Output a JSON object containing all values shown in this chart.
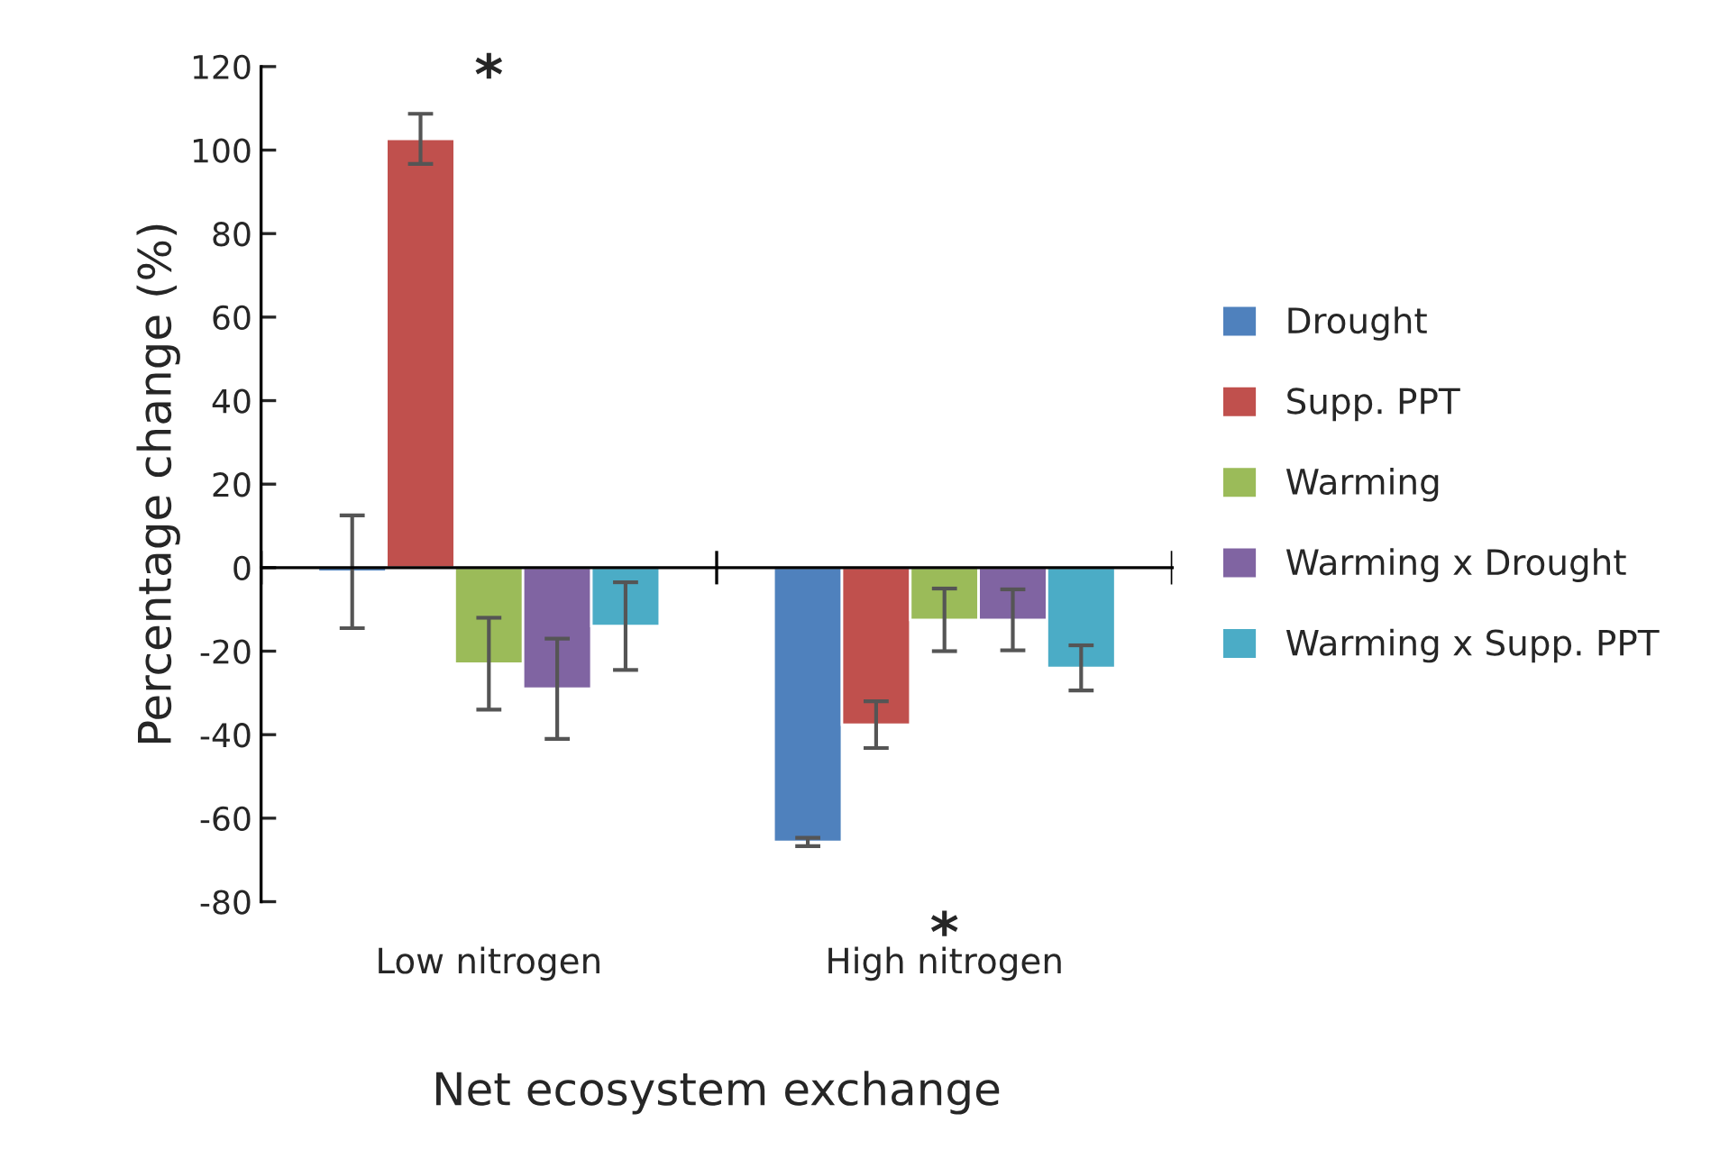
{
  "chart_data": {
    "type": "bar",
    "xlabel": "Net ecosystem exchange",
    "ylabel": "Percentage change (%)",
    "categories": [
      "Low nitrogen",
      "High nitrogen"
    ],
    "series": [
      {
        "name": "Drought",
        "color": "#4f81bd",
        "values": [
          -1,
          -65.7
        ],
        "errors": [
          13.5,
          1
        ]
      },
      {
        "name": "Supp. PPT",
        "color": "#c0504d",
        "values": [
          102.7,
          -37.6
        ],
        "errors": [
          6,
          5.6
        ]
      },
      {
        "name": "Warming",
        "color": "#9bbb59",
        "values": [
          -23,
          -12.5
        ],
        "errors": [
          11,
          7.5
        ]
      },
      {
        "name": "Warming x Drought",
        "color": "#8064a2",
        "values": [
          -29,
          -12.5
        ],
        "errors": [
          12,
          7.3
        ]
      },
      {
        "name": "Warming x Supp. PPT",
        "color": "#4bacc6",
        "values": [
          -14,
          -24
        ],
        "errors": [
          10.5,
          5.4
        ]
      }
    ],
    "ylim": [
      -80,
      120
    ],
    "yticks": [
      -80,
      -60,
      -40,
      -20,
      0,
      20,
      40,
      60,
      80,
      100,
      120
    ],
    "annotations": [
      "*",
      "*"
    ],
    "legend": "right"
  }
}
